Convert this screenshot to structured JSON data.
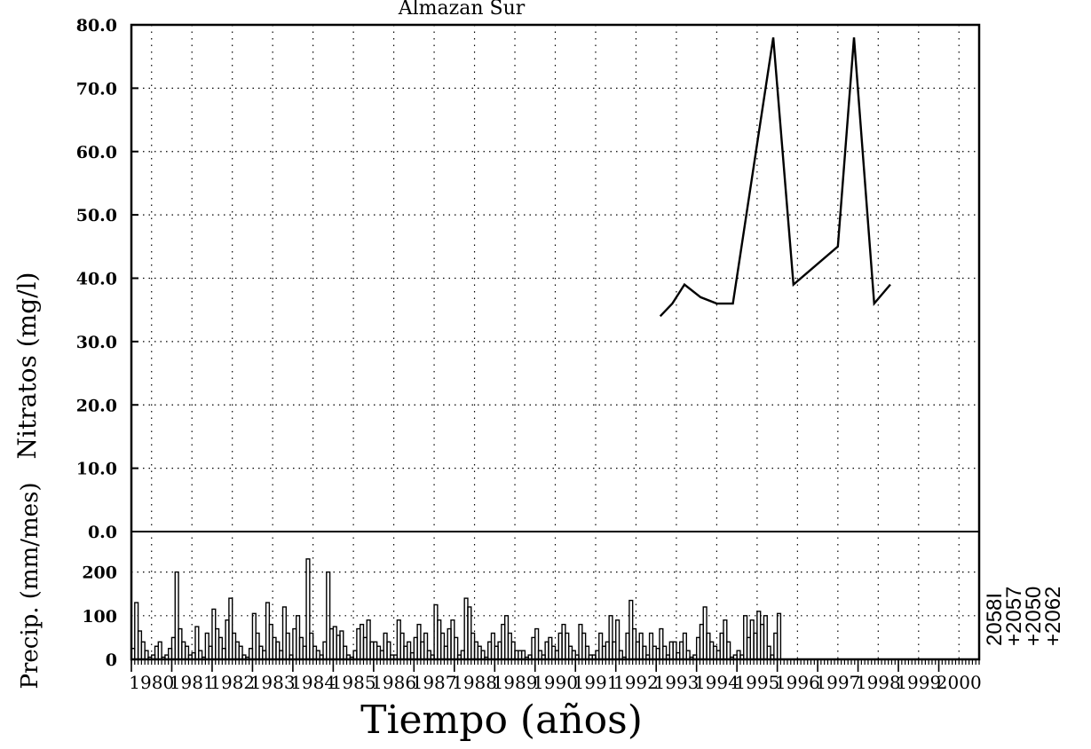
{
  "chart_data": {
    "type": "line",
    "title": "Almazan Sur",
    "xlabel": "Tiempo (años)",
    "upper_panel": {
      "ylabel": "Nitratos (mg/l)",
      "ylim": [
        0,
        80
      ],
      "yticks": [
        "80.0",
        "70.0",
        "60.0",
        "50.0",
        "40.0",
        "30.0",
        "20.0",
        "10.0",
        "0.0"
      ],
      "grid": true,
      "series": [
        {
          "x": [
            1992.6,
            1992.9,
            1993.2,
            1993.6,
            1994.0,
            1994.4,
            1995.4,
            1995.9,
            1997.0,
            1997.4,
            1997.9,
            1998.3
          ],
          "values": [
            34,
            36,
            39,
            37,
            36,
            36,
            78,
            39,
            45,
            78,
            36,
            39
          ]
        }
      ]
    },
    "lower_panel": {
      "ylabel": "Precip. (mm/mes)",
      "ylim": [
        0,
        250
      ],
      "yticks": [
        "200",
        "100",
        "0"
      ],
      "type": "bar",
      "x_start": 1979.5,
      "values": [
        25,
        130,
        65,
        40,
        20,
        5,
        10,
        30,
        40,
        5,
        10,
        25,
        50,
        200,
        70,
        40,
        30,
        10,
        15,
        75,
        20,
        5,
        60,
        30,
        115,
        70,
        50,
        25,
        90,
        140,
        60,
        40,
        30,
        10,
        5,
        25,
        105,
        60,
        30,
        20,
        130,
        80,
        50,
        40,
        20,
        120,
        60,
        10,
        70,
        100,
        50,
        30,
        230,
        60,
        30,
        20,
        10,
        40,
        200,
        70,
        75,
        55,
        65,
        30,
        10,
        5,
        20,
        70,
        80,
        50,
        90,
        40,
        40,
        30,
        20,
        60,
        40,
        10,
        10,
        90,
        60,
        30,
        40,
        15,
        50,
        80,
        40,
        60,
        20,
        10,
        125,
        90,
        60,
        30,
        70,
        90,
        50,
        10,
        20,
        140,
        120,
        60,
        40,
        30,
        20,
        5,
        40,
        60,
        30,
        40,
        80,
        100,
        60,
        40,
        20,
        20,
        20,
        5,
        10,
        50,
        70,
        20,
        10,
        40,
        50,
        30,
        20,
        60,
        80,
        60,
        30,
        20,
        10,
        80,
        60,
        30,
        10,
        10,
        20,
        60,
        30,
        40,
        100,
        40,
        90,
        20,
        5,
        60,
        135,
        70,
        40,
        60,
        30,
        10,
        60,
        30,
        25,
        70,
        30,
        10,
        40,
        40,
        15,
        40,
        60,
        20,
        5,
        10,
        50,
        80,
        120,
        60,
        40,
        30,
        20,
        60,
        90,
        40,
        5,
        10,
        20,
        10,
        100,
        50,
        90,
        60,
        110,
        80,
        100,
        30,
        10,
        60,
        105
      ],
      "annotations": [
        "2058I",
        "+2057",
        "+2050",
        "+2062"
      ]
    },
    "xlim": [
      1979.5,
      2000.5
    ],
    "xticks": [
      "1980",
      "1981",
      "1982",
      "1983",
      "1984",
      "1985",
      "1986",
      "1987",
      "1988",
      "1989",
      "1990",
      "1991",
      "1992",
      "1993",
      "1994",
      "1995",
      "1996",
      "1997",
      "1998",
      "1999",
      "2000"
    ]
  }
}
